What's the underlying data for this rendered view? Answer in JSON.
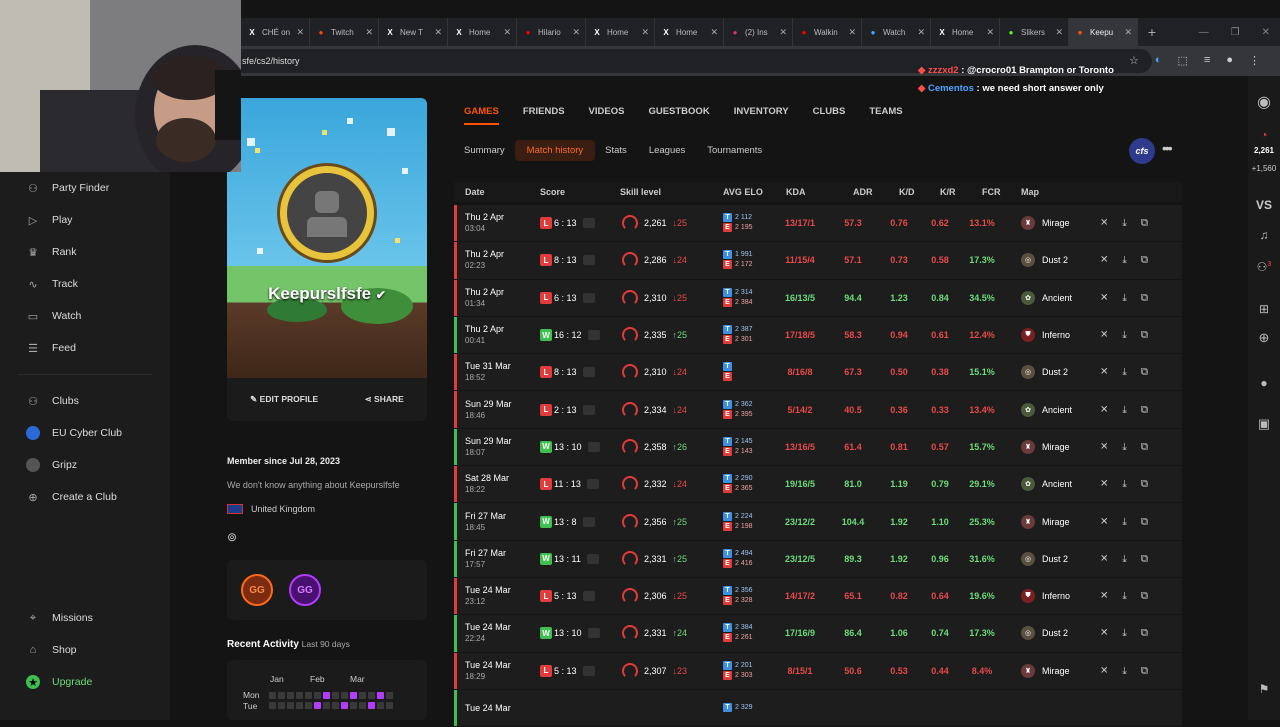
{
  "browser": {
    "tabs": [
      {
        "label": "CHÉ on",
        "icon": "x-icon",
        "color": "#fff"
      },
      {
        "label": "Twitch",
        "icon": "reddit-icon",
        "color": "#ff4500"
      },
      {
        "label": "New T",
        "icon": "x-icon",
        "color": "#fff"
      },
      {
        "label": "Home",
        "icon": "x-icon",
        "color": "#fff"
      },
      {
        "label": "Hilario",
        "icon": "youtube-icon",
        "color": "#ff0000"
      },
      {
        "label": "Home",
        "icon": "x-icon",
        "color": "#fff"
      },
      {
        "label": "Home",
        "icon": "x-icon",
        "color": "#fff"
      },
      {
        "label": "(2) Ins",
        "icon": "instagram-icon",
        "color": "#e1306c"
      },
      {
        "label": "Walkin",
        "icon": "youtube-icon",
        "color": "#ff0000"
      },
      {
        "label": "Watch",
        "icon": "browser-icon",
        "color": "#4da3ff"
      },
      {
        "label": "Home",
        "icon": "x-icon",
        "color": "#fff"
      },
      {
        "label": "Slikers",
        "icon": "k-icon",
        "color": "#53fc18"
      },
      {
        "label": "Keepu",
        "icon": "faceit-icon",
        "color": "#ff5500",
        "active": true
      }
    ],
    "url": "sfe/cs2/history"
  },
  "chat": [
    {
      "user": "zzzxd2",
      "text": "@crocro01 Brampton or Toronto",
      "mention": "@crocro01"
    },
    {
      "user": "Cementos",
      "text": "we need short answer only"
    }
  ],
  "sidebar": {
    "main": [
      "Party Finder",
      "Play",
      "Rank",
      "Track",
      "Watch",
      "Feed"
    ],
    "main_icons": [
      "party-icon",
      "play-icon",
      "rank-icon",
      "track-icon",
      "watch-icon",
      "feed-icon"
    ],
    "clubs": [
      "Clubs",
      "EU Cyber Club",
      "Gripz",
      "Create a Club"
    ],
    "bottom": [
      "Missions",
      "Shop",
      "Upgrade"
    ]
  },
  "profile": {
    "name": "Keepurslfsfe",
    "edit_label": "EDIT PROFILE",
    "share_label": "SHARE",
    "member_since": "Member since Jul 28, 2023",
    "about": "We don't know anything about Keepurslfsfe",
    "country": "United Kingdom",
    "recent_title": "Recent Activity",
    "recent_range": "Last 90 days",
    "months": [
      "Jan",
      "Feb",
      "Mar"
    ],
    "days": [
      "Mon",
      "Tue"
    ]
  },
  "profile_tabs": [
    "GAMES",
    "FRIENDS",
    "VIDEOS",
    "GUESTBOOK",
    "INVENTORY",
    "CLUBS",
    "TEAMS"
  ],
  "sub_tabs": [
    "Summary",
    "Match history",
    "Stats",
    "Leagues",
    "Tournaments"
  ],
  "cfs_label": "cfs",
  "columns": [
    "Date",
    "Score",
    "Skill level",
    "AVG ELO",
    "KDA",
    "ADR",
    "K/D",
    "K/R",
    "FCR",
    "Map"
  ],
  "matches": [
    {
      "date": "Thu 2 Apr",
      "time": "03:04",
      "result": "L",
      "score": "6 : 13",
      "elo": "2,261",
      "change": "25",
      "t": "2 112",
      "e": "2 195",
      "kda": "13/17/1",
      "adr": "57.3",
      "kd": "0.76",
      "kr": "0.62",
      "fcr": "13.1%",
      "map": "Mirage"
    },
    {
      "date": "Thu 2 Apr",
      "time": "02:23",
      "result": "L",
      "score": "8 : 13",
      "elo": "2,286",
      "change": "24",
      "t": "1 991",
      "e": "2 172",
      "kda": "11/15/4",
      "adr": "57.1",
      "kd": "0.73",
      "kr": "0.58",
      "fcr": "17.3%",
      "map": "Dust 2"
    },
    {
      "date": "Thu 2 Apr",
      "time": "01:34",
      "result": "L",
      "score": "6 : 13",
      "elo": "2,310",
      "change": "25",
      "t": "2 314",
      "e": "2 384",
      "kda": "16/13/5",
      "adr": "94.4",
      "kd": "1.23",
      "kr": "0.84",
      "fcr": "34.5%",
      "map": "Ancient"
    },
    {
      "date": "Thu 2 Apr",
      "time": "00:41",
      "result": "W",
      "score": "16 : 12",
      "elo": "2,335",
      "change": "25",
      "t": "2 387",
      "e": "2 301",
      "kda": "17/18/5",
      "adr": "58.3",
      "kd": "0.94",
      "kr": "0.61",
      "fcr": "12.4%",
      "map": "Inferno"
    },
    {
      "date": "Tue 31 Mar",
      "time": "18:52",
      "result": "L",
      "score": "8 : 13",
      "elo": "2,310",
      "change": "24",
      "t": "",
      "e": "",
      "kda": "8/16/8",
      "adr": "67.3",
      "kd": "0.50",
      "kr": "0.38",
      "fcr": "15.1%",
      "map": "Dust 2"
    },
    {
      "date": "Sun 29 Mar",
      "time": "18:46",
      "result": "L",
      "score": "2 : 13",
      "elo": "2,334",
      "change": "24",
      "t": "2 362",
      "e": "2 395",
      "kda": "5/14/2",
      "adr": "40.5",
      "kd": "0.36",
      "kr": "0.33",
      "fcr": "13.4%",
      "map": "Ancient"
    },
    {
      "date": "Sun 29 Mar",
      "time": "18:07",
      "result": "W",
      "score": "13 : 10",
      "elo": "2,358",
      "change": "26",
      "t": "2 145",
      "e": "2 143",
      "kda": "13/16/5",
      "adr": "61.4",
      "kd": "0.81",
      "kr": "0.57",
      "fcr": "15.7%",
      "map": "Mirage"
    },
    {
      "date": "Sat 28 Mar",
      "time": "18:22",
      "result": "L",
      "score": "11 : 13",
      "elo": "2,332",
      "change": "24",
      "t": "2 290",
      "e": "2 365",
      "kda": "19/16/5",
      "adr": "81.0",
      "kd": "1.19",
      "kr": "0.79",
      "fcr": "29.1%",
      "map": "Ancient"
    },
    {
      "date": "Fri 27 Mar",
      "time": "18:45",
      "result": "W",
      "score": "13 : 8",
      "elo": "2,356",
      "change": "25",
      "t": "2 224",
      "e": "2 198",
      "kda": "23/12/2",
      "adr": "104.4",
      "kd": "1.92",
      "kr": "1.10",
      "fcr": "25.3%",
      "map": "Mirage"
    },
    {
      "date": "Fri 27 Mar",
      "time": "17:57",
      "result": "W",
      "score": "13 : 11",
      "elo": "2,331",
      "change": "25",
      "t": "2 494",
      "e": "2 416",
      "kda": "23/12/5",
      "adr": "89.3",
      "kd": "1.92",
      "kr": "0.96",
      "fcr": "31.6%",
      "map": "Dust 2"
    },
    {
      "date": "Tue 24 Mar",
      "time": "23:12",
      "result": "L",
      "score": "5 : 13",
      "elo": "2,306",
      "change": "25",
      "t": "2 356",
      "e": "2 328",
      "kda": "14/17/2",
      "adr": "65.1",
      "kd": "0.82",
      "kr": "0.64",
      "fcr": "19.6%",
      "map": "Inferno"
    },
    {
      "date": "Tue 24 Mar",
      "time": "22:24",
      "result": "W",
      "score": "13 : 10",
      "elo": "2,331",
      "change": "24",
      "t": "2 384",
      "e": "2 261",
      "kda": "17/16/9",
      "adr": "86.4",
      "kd": "1.06",
      "kr": "0.74",
      "fcr": "17.3%",
      "map": "Dust 2"
    },
    {
      "date": "Tue 24 Mar",
      "time": "18:29",
      "result": "L",
      "score": "5 : 13",
      "elo": "2,307",
      "change": "23",
      "t": "2 201",
      "e": "2 303",
      "kda": "8/15/1",
      "adr": "50.6",
      "kd": "0.53",
      "kr": "0.44",
      "fcr": "8.4%",
      "map": "Mirage"
    },
    {
      "date": "Tue 24 Mar",
      "time": "",
      "result": "W",
      "score": "",
      "elo": "",
      "change": "",
      "t": "2 329",
      "e": "",
      "kda": "",
      "adr": "",
      "kd": "",
      "kr": "",
      "fcr": "",
      "map": ""
    }
  ],
  "right_rail": {
    "points": "2,261",
    "delta": "+1,560",
    "vs": "VS",
    "notif_count": "3"
  },
  "colors": {
    "accent": "#ff5500",
    "win": "#3fbf4f",
    "loss": "#e23b3b",
    "good": "#6ddc7a",
    "bad": "#e84a4a",
    "t_side": "#3d8fe0",
    "e_side": "#e23b3b"
  }
}
